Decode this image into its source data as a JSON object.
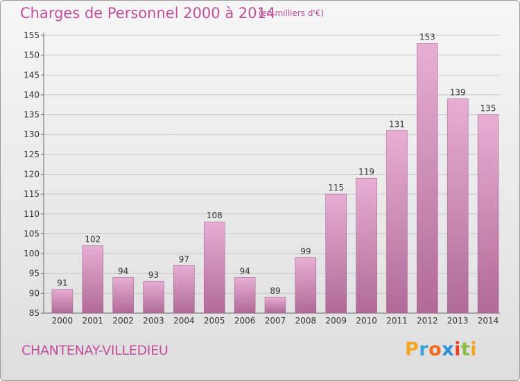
{
  "header": {
    "title": "Charges de Personnel 2000 à 2014",
    "subtitle": "(en milliers d'€)"
  },
  "footer": {
    "place": "CHANTENAY-VILLEDIEU",
    "logo": "Proxiti"
  },
  "colors": {
    "bar_light": "#e7aed3",
    "bar_dark": "#b06a98",
    "title": "#c0509a"
  },
  "chart_data": {
    "type": "bar",
    "title": "Charges de Personnel 2000 à 2014",
    "subtitle": "(en milliers d'€)",
    "xlabel": "",
    "ylabel": "",
    "ylim": [
      85,
      155
    ],
    "yticks": [
      85,
      90,
      95,
      100,
      105,
      110,
      115,
      120,
      125,
      130,
      135,
      140,
      145,
      150,
      155
    ],
    "grid": true,
    "categories": [
      "2000",
      "2001",
      "2002",
      "2003",
      "2004",
      "2005",
      "2006",
      "2007",
      "2008",
      "2009",
      "2010",
      "2011",
      "2012",
      "2013",
      "2014"
    ],
    "values": [
      91,
      102,
      94,
      93,
      97,
      108,
      94,
      89,
      99,
      115,
      119,
      131,
      153,
      139,
      135
    ]
  }
}
